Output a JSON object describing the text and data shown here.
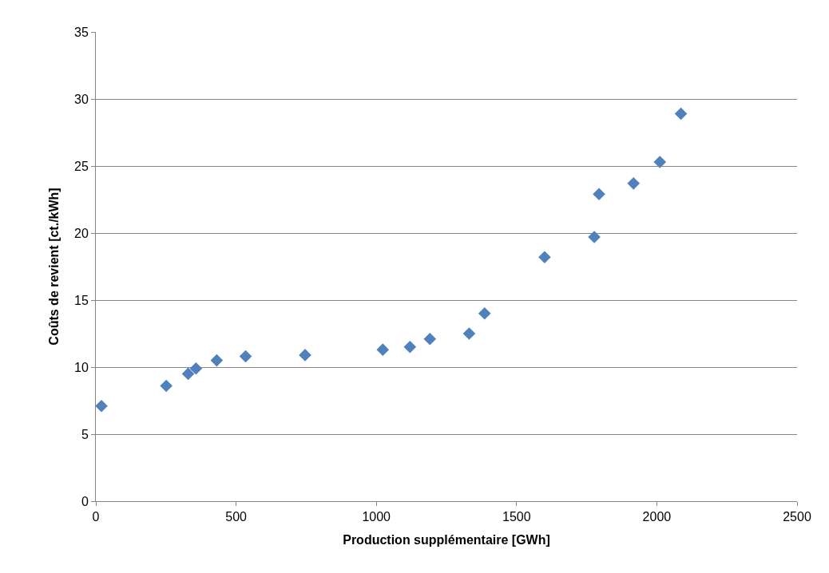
{
  "chart_data": {
    "type": "scatter",
    "xlabel": "Production supplémentaire [GWh]",
    "ylabel": "Coûts de revient [ct./kWh]",
    "x": [
      20,
      251,
      329,
      357,
      431,
      534,
      746,
      1023,
      1120,
      1191,
      1331,
      1386,
      1600,
      1777,
      1794,
      1917,
      2011,
      2086
    ],
    "series": [
      {
        "color": "#4f81bd",
        "values": [
          7.1,
          8.6,
          9.5,
          9.9,
          10.5,
          10.8,
          10.9,
          11.3,
          11.5,
          12.1,
          12.5,
          14.0,
          18.2,
          19.7,
          22.9,
          23.7,
          25.3,
          28.9
        ]
      }
    ],
    "xlim": [
      0,
      2500
    ],
    "xticks": [
      0,
      500,
      1000,
      1500,
      2000,
      2500
    ],
    "ylim": [
      0,
      35
    ],
    "yticks": [
      0,
      5,
      10,
      15,
      20,
      25,
      30,
      35
    ],
    "grid": "y",
    "marker": "diamond"
  }
}
